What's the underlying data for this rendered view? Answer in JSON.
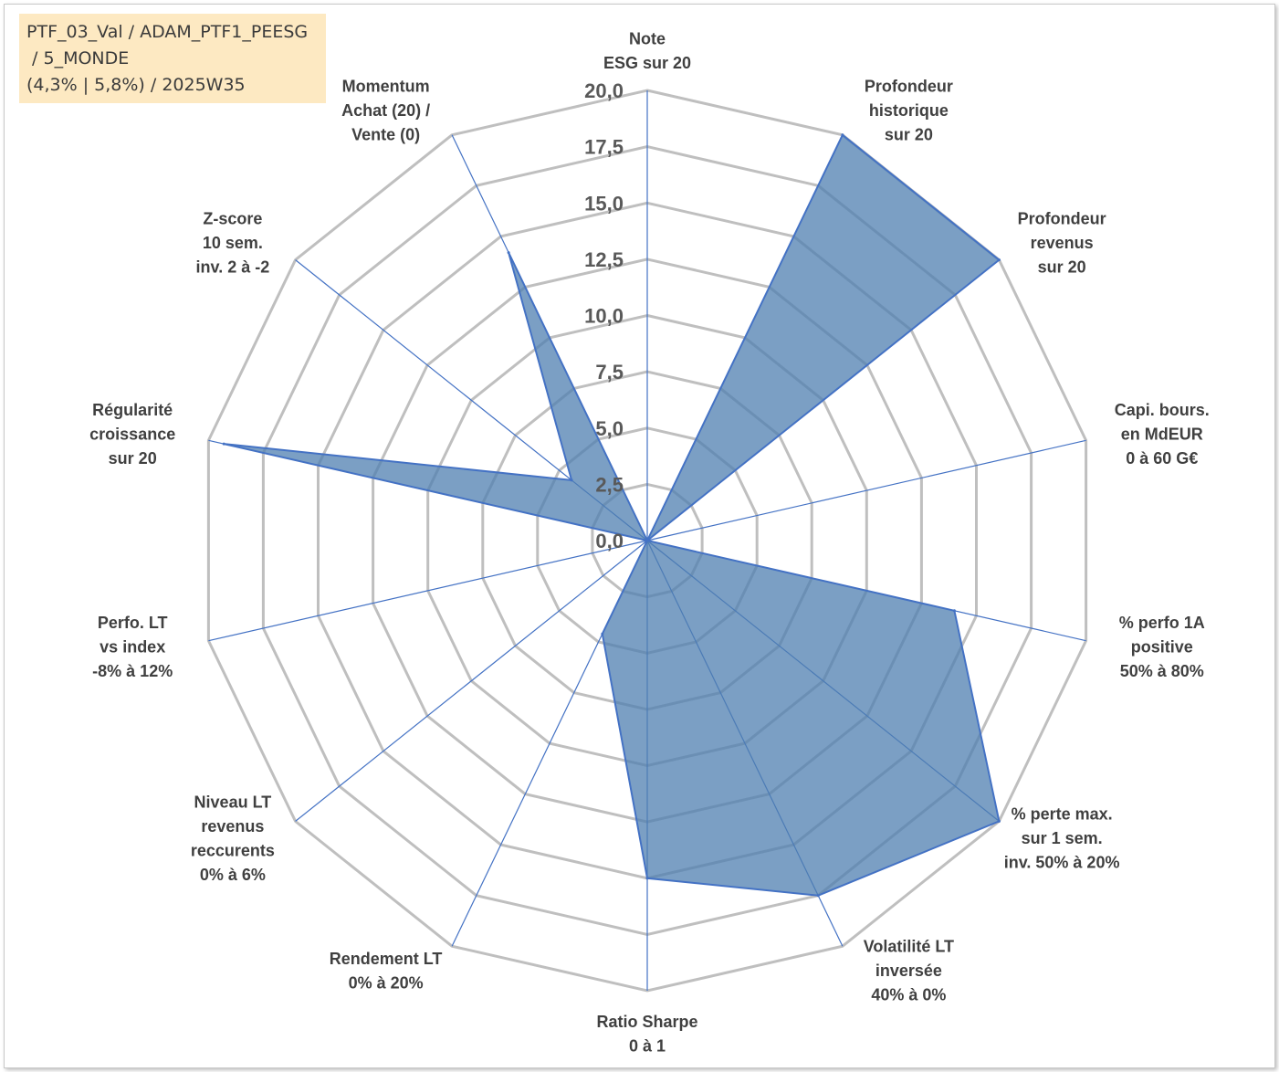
{
  "title": {
    "lines": [
      "PTF_03_Val / ADAM_PTF1_PEESG",
      " / 5_MONDE",
      "(4,3% | 5,8%) / 2025W35"
    ]
  },
  "chart_data": {
    "type": "radar",
    "rmin": 0,
    "rmax": 20,
    "tick_labels": [
      "0,0",
      "2,5",
      "5,0",
      "7,5",
      "10,0",
      "12,5",
      "15,0",
      "17,5",
      "20,0"
    ],
    "ticks": [
      0,
      2.5,
      5,
      7.5,
      10,
      12.5,
      15,
      17.5,
      20
    ],
    "grid": true,
    "colors": {
      "fill": "#4f7fb0",
      "line": "#4472c4",
      "grid": "#bfbfbf",
      "spoke": "#4472c4"
    },
    "categories": [
      [
        "Note",
        "ESG sur 20"
      ],
      [
        "Profondeur",
        "historique",
        "sur 20"
      ],
      [
        "Profondeur",
        "revenus",
        "sur 20"
      ],
      [
        "Capi. bours.",
        "en MdEUR",
        "0 à 60 G€"
      ],
      [
        "% perfo 1A",
        "positive",
        "50% à 80%"
      ],
      [
        "% perte max.",
        "sur 1 sem.",
        "inv. 50% à 20%"
      ],
      [
        "Volatilité LT",
        "inversée",
        "40% à 0%"
      ],
      [
        "Ratio Sharpe",
        "0 à 1"
      ],
      [
        "Rendement LT",
        "0% à 20%"
      ],
      [
        "Niveau LT",
        "revenus",
        "reccurents",
        "0% à 6%"
      ],
      [
        "Perfo. LT",
        "vs index",
        "-8% à 12%"
      ],
      [
        "Régularité",
        "croissance",
        "sur 20"
      ],
      [
        "Z-score",
        "10 sem.",
        "inv. 2 à -2"
      ],
      [
        "Momentum",
        "Achat (20) /",
        "Vente (0)"
      ]
    ],
    "series": [
      {
        "values": [
          0,
          20,
          20,
          0,
          14,
          20,
          17.5,
          15,
          4.6,
          0,
          0,
          19.3,
          4.3,
          14.2
        ]
      }
    ]
  }
}
